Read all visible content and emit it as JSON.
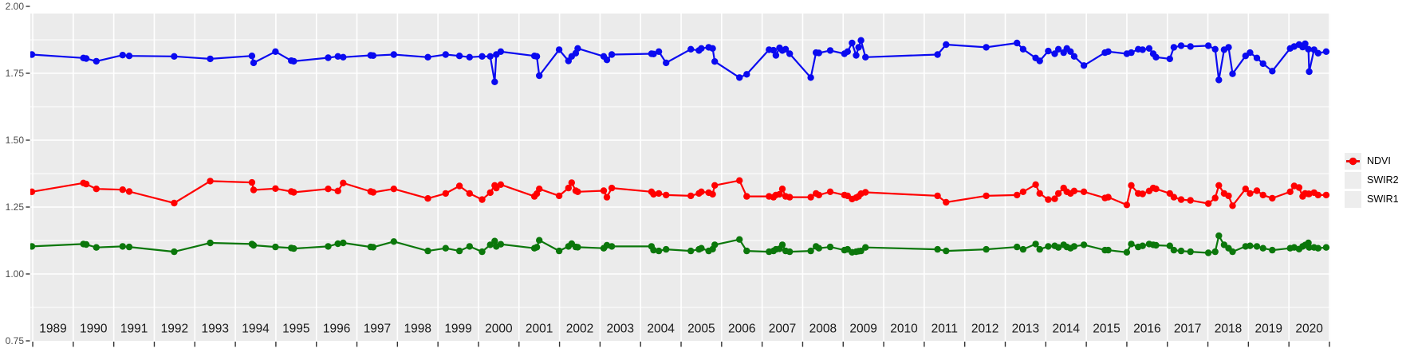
{
  "figure": {
    "kind": "scatter-line time series on gray panel (ggplot style)",
    "background": "#ffffff",
    "panel_background": "#EBEBEB",
    "grid_color": "#FFFFFF",
    "axis_text_color": "#4D4D4D",
    "x_label_color": "#1a1a1a",
    "tick_color": "#333333"
  },
  "legend": {
    "position": "right",
    "items": [
      {
        "label": "NDVI",
        "color": "#0A0AF0"
      },
      {
        "label": "SWIR2",
        "color": "#0B770B"
      },
      {
        "label": "SWIR1",
        "color": "#FF0000"
      }
    ]
  },
  "chart_data": {
    "type": "line",
    "title": "",
    "xlabel": "",
    "ylabel": "",
    "legend_position": "right",
    "grid": "white major+minor horizontal, white yearly vertical, on gray panel",
    "xlim": [
      1988.94,
      2021.02
    ],
    "ylim": [
      0.75,
      2.0
    ],
    "y_ticks": [
      0.75,
      1.0,
      1.25,
      1.5,
      1.75,
      2.0
    ],
    "y_tick_labels": [
      "0.75",
      "1.00",
      "1.25",
      "1.50",
      "1.75",
      "2.00"
    ],
    "x_tick_labels": [
      "1989",
      "1990",
      "1991",
      "1992",
      "1993",
      "1994",
      "1995",
      "1996",
      "1997",
      "1998",
      "1999",
      "2000",
      "2001",
      "2002",
      "2003",
      "2004",
      "2005",
      "2006",
      "2007",
      "2008",
      "2009",
      "2010",
      "2011",
      "2012",
      "2013",
      "2014",
      "2015",
      "2016",
      "2017",
      "2018",
      "2019",
      "2020"
    ],
    "x": [
      1988.98,
      1990.25,
      1990.32,
      1990.57,
      1991.22,
      1991.38,
      1992.49,
      1993.38,
      1994.41,
      1994.45,
      1994.99,
      1995.38,
      1995.44,
      1996.29,
      1996.53,
      1996.66,
      1997.34,
      1997.4,
      1997.91,
      1998.75,
      1999.19,
      1999.53,
      1999.78,
      2000.09,
      2000.29,
      2000.4,
      2000.44,
      2000.55,
      2001.38,
      2001.44,
      2001.5,
      2001.99,
      2002.22,
      2002.3,
      2002.4,
      2002.45,
      2003.09,
      2003.17,
      2003.29,
      2004.27,
      2004.32,
      2004.45,
      2004.63,
      2005.24,
      2005.44,
      2005.5,
      2005.68,
      2005.78,
      2005.83,
      2006.44,
      2006.62,
      2007.17,
      2007.28,
      2007.34,
      2007.43,
      2007.5,
      2007.58,
      2007.68,
      2008.2,
      2008.33,
      2008.4,
      2008.68,
      2009.03,
      2009.11,
      2009.22,
      2009.32,
      2009.38,
      2009.44,
      2009.55,
      2011.33,
      2011.54,
      2012.53,
      2013.29,
      2013.44,
      2013.75,
      2013.85,
      2014.06,
      2014.22,
      2014.31,
      2014.44,
      2014.52,
      2014.61,
      2014.7,
      2014.94,
      2015.46,
      2015.54,
      2016.0,
      2016.11,
      2016.28,
      2016.39,
      2016.55,
      2016.65,
      2016.72,
      2017.06,
      2017.16,
      2017.34,
      2017.57,
      2018.01,
      2018.18,
      2018.27,
      2018.4,
      2018.51,
      2018.61,
      2018.93,
      2019.04,
      2019.21,
      2019.36,
      2019.59,
      2020.03,
      2020.13,
      2020.25,
      2020.34,
      2020.4,
      2020.48,
      2020.5,
      2020.62,
      2020.72,
      2020.92
    ],
    "series": [
      {
        "name": "NDVI",
        "color": "#0A0AF0",
        "values": [
          1.82,
          1.807,
          1.805,
          1.795,
          1.818,
          1.815,
          1.813,
          1.804,
          1.815,
          1.789,
          1.831,
          1.797,
          1.795,
          1.808,
          1.813,
          1.81,
          1.817,
          1.816,
          1.82,
          1.81,
          1.82,
          1.815,
          1.81,
          1.813,
          1.813,
          1.718,
          1.82,
          1.831,
          1.815,
          1.813,
          1.741,
          1.838,
          1.796,
          1.813,
          1.825,
          1.843,
          1.813,
          1.8,
          1.82,
          1.823,
          1.822,
          1.831,
          1.789,
          1.84,
          1.835,
          1.843,
          1.847,
          1.843,
          1.794,
          1.734,
          1.746,
          1.838,
          1.836,
          1.817,
          1.845,
          1.835,
          1.84,
          1.823,
          1.734,
          1.827,
          1.826,
          1.835,
          1.823,
          1.831,
          1.863,
          1.817,
          1.847,
          1.873,
          1.81,
          1.82,
          1.857,
          1.847,
          1.863,
          1.84,
          1.807,
          1.796,
          1.833,
          1.823,
          1.84,
          1.827,
          1.843,
          1.831,
          1.813,
          1.779,
          1.827,
          1.831,
          1.823,
          1.827,
          1.84,
          1.838,
          1.843,
          1.823,
          1.81,
          1.804,
          1.847,
          1.853,
          1.85,
          1.853,
          1.84,
          1.725,
          1.838,
          1.847,
          1.748,
          1.815,
          1.827,
          1.807,
          1.786,
          1.758,
          1.843,
          1.85,
          1.857,
          1.848,
          1.86,
          1.84,
          1.756,
          1.838,
          1.825,
          1.831
        ]
      },
      {
        "name": "SWIR2",
        "color": "#0B770B",
        "values": [
          1.103,
          1.112,
          1.11,
          1.099,
          1.103,
          1.101,
          1.083,
          1.116,
          1.112,
          1.107,
          1.101,
          1.097,
          1.095,
          1.103,
          1.113,
          1.116,
          1.101,
          1.1,
          1.121,
          1.086,
          1.096,
          1.086,
          1.103,
          1.083,
          1.109,
          1.123,
          1.103,
          1.111,
          1.096,
          1.1,
          1.126,
          1.086,
          1.103,
          1.113,
          1.101,
          1.1,
          1.096,
          1.107,
          1.103,
          1.103,
          1.089,
          1.086,
          1.092,
          1.086,
          1.092,
          1.096,
          1.086,
          1.093,
          1.109,
          1.129,
          1.086,
          1.083,
          1.086,
          1.092,
          1.094,
          1.109,
          1.086,
          1.083,
          1.086,
          1.103,
          1.096,
          1.101,
          1.089,
          1.092,
          1.081,
          1.083,
          1.085,
          1.086,
          1.099,
          1.092,
          1.086,
          1.092,
          1.101,
          1.092,
          1.112,
          1.092,
          1.103,
          1.105,
          1.099,
          1.109,
          1.101,
          1.096,
          1.103,
          1.109,
          1.089,
          1.089,
          1.081,
          1.112,
          1.101,
          1.105,
          1.112,
          1.109,
          1.107,
          1.105,
          1.089,
          1.086,
          1.083,
          1.079,
          1.083,
          1.143,
          1.109,
          1.096,
          1.083,
          1.103,
          1.105,
          1.103,
          1.096,
          1.089,
          1.096,
          1.099,
          1.093,
          1.103,
          1.108,
          1.116,
          1.099,
          1.099,
          1.096,
          1.099
        ]
      },
      {
        "name": "SWIR1",
        "color": "#FF0000",
        "values": [
          1.307,
          1.34,
          1.336,
          1.318,
          1.315,
          1.308,
          1.265,
          1.347,
          1.342,
          1.314,
          1.319,
          1.308,
          1.305,
          1.318,
          1.31,
          1.34,
          1.308,
          1.305,
          1.318,
          1.282,
          1.301,
          1.329,
          1.301,
          1.278,
          1.304,
          1.331,
          1.321,
          1.334,
          1.29,
          1.3,
          1.318,
          1.292,
          1.321,
          1.341,
          1.311,
          1.307,
          1.311,
          1.287,
          1.321,
          1.307,
          1.298,
          1.301,
          1.295,
          1.292,
          1.301,
          1.307,
          1.304,
          1.298,
          1.331,
          1.349,
          1.29,
          1.29,
          1.287,
          1.295,
          1.298,
          1.318,
          1.29,
          1.287,
          1.287,
          1.301,
          1.295,
          1.307,
          1.295,
          1.292,
          1.28,
          1.285,
          1.29,
          1.3,
          1.305,
          1.292,
          1.268,
          1.292,
          1.295,
          1.307,
          1.334,
          1.301,
          1.278,
          1.281,
          1.301,
          1.321,
          1.307,
          1.301,
          1.31,
          1.307,
          1.284,
          1.287,
          1.258,
          1.331,
          1.301,
          1.299,
          1.31,
          1.321,
          1.318,
          1.301,
          1.287,
          1.278,
          1.275,
          1.263,
          1.284,
          1.331,
          1.301,
          1.292,
          1.255,
          1.318,
          1.301,
          1.311,
          1.295,
          1.283,
          1.307,
          1.329,
          1.323,
          1.29,
          1.301,
          1.299,
          1.299,
          1.304,
          1.295,
          1.295
        ]
      }
    ]
  }
}
